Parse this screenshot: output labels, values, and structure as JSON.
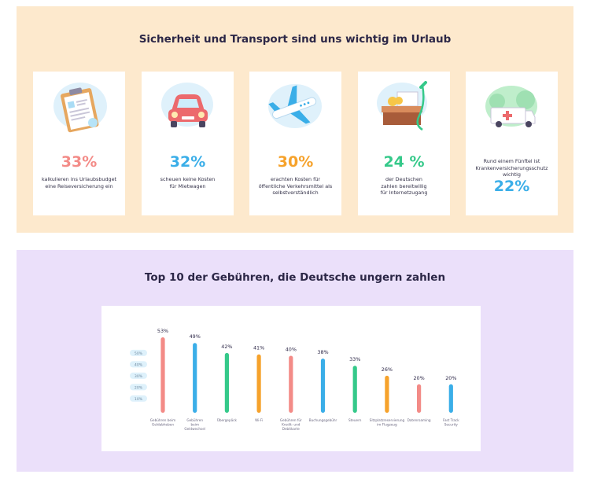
{
  "top_section": {
    "title": "Sicherheit und Transport sind uns wichtig im Urlaub",
    "cards": [
      {
        "value": "33%",
        "text_lines": [
          "kalkulieren ins Urlaubsbudget",
          "eine Reiseversicherung ein"
        ],
        "color": "#f38b87",
        "icon": "clipboard-icon"
      },
      {
        "value": "32%",
        "text_lines": [
          "scheuen keine Kosten",
          "für Mietwagen"
        ],
        "color": "#3aaee8",
        "icon": "car-icon"
      },
      {
        "value": "30%",
        "text_lines": [
          "erachten Kosten für",
          "öffentliche Verkehrsmittel als",
          "selbstverständlich"
        ],
        "color": "#f6a22b",
        "icon": "airplane-icon"
      },
      {
        "value": "24 %",
        "text_lines": [
          "der Deutschen",
          "zahlen bereitwillig",
          "für Internetzugang"
        ],
        "color": "#35c98a",
        "icon": "wifi-cable-icon"
      },
      {
        "value": "22%",
        "text_lines": [
          "Rund einem Fünftel ist",
          "Krankenversicherungsschutz",
          "wichtig"
        ],
        "color": "#3aaee8",
        "icon": "ambulance-icon"
      }
    ]
  },
  "bottom_section": {
    "title": "Top 10 der Gebühren, die Deutsche ungern zahlen"
  },
  "chart_data": {
    "type": "bar",
    "title": "Top 10 der Gebühren, die Deutsche ungern zahlen",
    "categories": [
      [
        "Gebühren beim",
        "Geldabheben"
      ],
      [
        "Gebühren",
        "beim",
        "Geldwechsel"
      ],
      [
        "Übergepäck"
      ],
      [
        "Wi-Fi"
      ],
      [
        "Gebühren für",
        "Kredit- und",
        "Debitkarte"
      ],
      [
        "Buchungsgebühr"
      ],
      [
        "Steuern"
      ],
      [
        "Sitzplatzreservierung",
        "im Flugzeug"
      ],
      [
        "Datenroaming"
      ],
      [
        "Fast Track",
        "Security"
      ]
    ],
    "values": [
      53,
      49,
      42,
      41,
      40,
      38,
      33,
      26,
      20,
      20
    ],
    "value_labels": [
      "53%",
      "49%",
      "42%",
      "41%",
      "40%",
      "38%",
      "33%",
      "26%",
      "20%",
      "20%"
    ],
    "bar_colors": [
      "#f38b87",
      "#3aaee8",
      "#35c98a",
      "#f6a22b",
      "#f38b87",
      "#3aaee8",
      "#35c98a",
      "#f6a22b",
      "#f38b87",
      "#3aaee8"
    ],
    "y_ticks": [
      "50%",
      "40%",
      "30%",
      "20%",
      "10%"
    ],
    "y_tick_values": [
      50,
      40,
      30,
      20,
      10
    ],
    "ylim": [
      0,
      60
    ],
    "grid": false,
    "legend": "none"
  }
}
